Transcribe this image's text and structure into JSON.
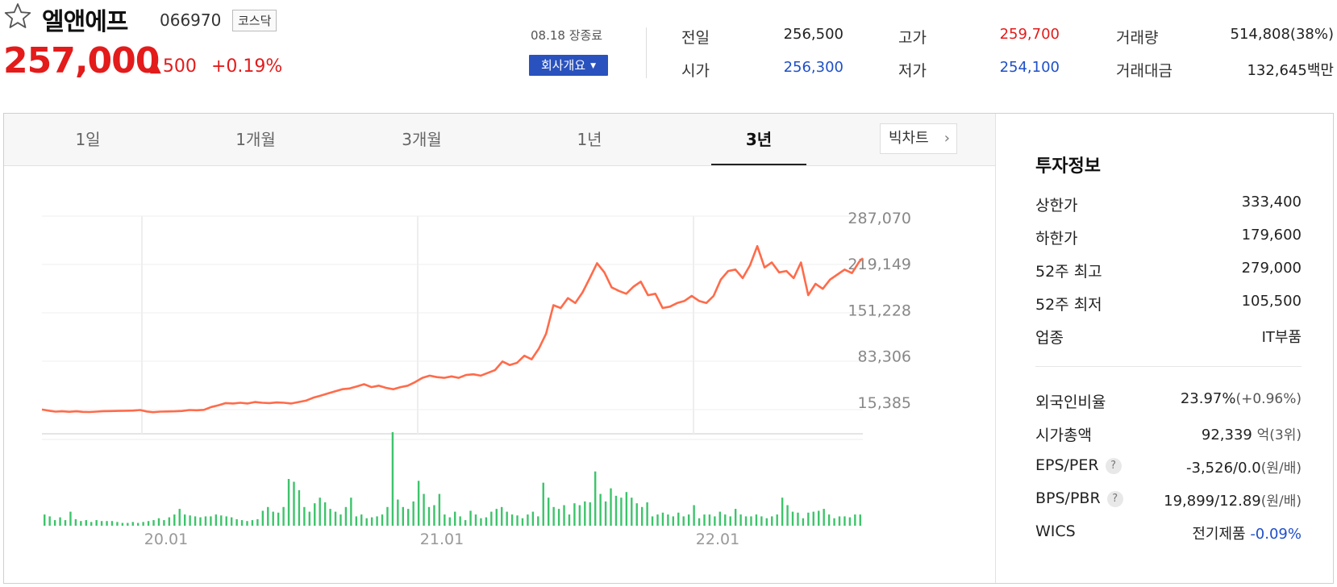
{
  "header": {
    "favorite_icon": "star-outline-icon",
    "stock_name": "엘앤에프",
    "stock_code": "066970",
    "market": "코스닥",
    "price": "257,000",
    "change_arrow": "▲",
    "change": "500",
    "change_pct": "+0.19%",
    "time_status": "08.18 장종료",
    "company_button": "회사개요",
    "colors": {
      "up": "#e31b1b",
      "down": "#1f50c8",
      "accent": "#2a52be"
    },
    "stats": [
      {
        "label": "전일",
        "value": "256,500",
        "color": "dark"
      },
      {
        "label": "고가",
        "value": "259,700",
        "color": "red"
      },
      {
        "label": "거래량",
        "value": "514,808(38%)",
        "color": "dark"
      },
      {
        "label": "시가",
        "value": "256,300",
        "color": "blue"
      },
      {
        "label": "저가",
        "value": "254,100",
        "color": "blue"
      },
      {
        "label": "거래대금",
        "value": "132,645백만",
        "color": "dark"
      }
    ]
  },
  "tabs": [
    "1일",
    "1개월",
    "3개월",
    "1년",
    "3년"
  ],
  "active_tab": "3년",
  "big_chart_button": "빅차트",
  "chart_data": {
    "type": "line",
    "title": "",
    "y_ticks": [
      "287,070",
      "219,149",
      "151,228",
      "83,306",
      "15,385"
    ],
    "x_ticks": [
      "20.01",
      "21.01",
      "22.01"
    ],
    "price_color": "#ff6b4a",
    "volume_color": "#3cc46a",
    "price_y_range": [
      15385,
      287070
    ],
    "price_points": [
      [
        0,
        15500
      ],
      [
        8,
        13800
      ],
      [
        15,
        12500
      ],
      [
        22,
        13000
      ],
      [
        30,
        12300
      ],
      [
        38,
        13000
      ],
      [
        45,
        12200
      ],
      [
        52,
        12000
      ],
      [
        60,
        12500
      ],
      [
        68,
        13200
      ],
      [
        76,
        13400
      ],
      [
        84,
        13600
      ],
      [
        92,
        13800
      ],
      [
        100,
        14000
      ],
      [
        108,
        14800
      ],
      [
        115,
        12800
      ],
      [
        122,
        11800
      ],
      [
        130,
        12500
      ],
      [
        138,
        12800
      ],
      [
        146,
        13000
      ],
      [
        154,
        13500
      ],
      [
        162,
        14800
      ],
      [
        170,
        14500
      ],
      [
        178,
        15000
      ],
      [
        186,
        19000
      ],
      [
        194,
        21500
      ],
      [
        202,
        24500
      ],
      [
        210,
        24000
      ],
      [
        218,
        25000
      ],
      [
        226,
        24000
      ],
      [
        234,
        26000
      ],
      [
        242,
        25000
      ],
      [
        250,
        24500
      ],
      [
        258,
        25500
      ],
      [
        266,
        25000
      ],
      [
        274,
        24000
      ],
      [
        282,
        26000
      ],
      [
        290,
        28000
      ],
      [
        298,
        32000
      ],
      [
        306,
        35000
      ],
      [
        314,
        38000
      ],
      [
        322,
        41000
      ],
      [
        330,
        44000
      ],
      [
        338,
        45000
      ],
      [
        346,
        48000
      ],
      [
        354,
        51000
      ],
      [
        362,
        47000
      ],
      [
        370,
        49000
      ],
      [
        378,
        46000
      ],
      [
        386,
        44000
      ],
      [
        394,
        47000
      ],
      [
        402,
        49000
      ],
      [
        410,
        54000
      ],
      [
        418,
        60000
      ],
      [
        426,
        63000
      ],
      [
        434,
        61000
      ],
      [
        442,
        60000
      ],
      [
        450,
        62000
      ],
      [
        458,
        60000
      ],
      [
        466,
        64000
      ],
      [
        474,
        65000
      ],
      [
        482,
        63000
      ],
      [
        490,
        67000
      ],
      [
        498,
        71000
      ],
      [
        506,
        83000
      ],
      [
        514,
        78000
      ],
      [
        522,
        81000
      ],
      [
        530,
        91000
      ],
      [
        538,
        86000
      ],
      [
        546,
        101000
      ],
      [
        554,
        122000
      ],
      [
        562,
        162000
      ],
      [
        570,
        158000
      ],
      [
        578,
        172000
      ],
      [
        586,
        165000
      ],
      [
        594,
        180000
      ],
      [
        602,
        200000
      ],
      [
        610,
        221000
      ],
      [
        618,
        208000
      ],
      [
        626,
        187000
      ],
      [
        634,
        182000
      ],
      [
        642,
        178000
      ],
      [
        650,
        188000
      ],
      [
        658,
        195000
      ],
      [
        666,
        176000
      ],
      [
        674,
        178000
      ],
      [
        682,
        158000
      ],
      [
        690,
        160000
      ],
      [
        698,
        165000
      ],
      [
        706,
        168000
      ],
      [
        714,
        175000
      ],
      [
        722,
        168000
      ],
      [
        730,
        165000
      ],
      [
        738,
        175000
      ],
      [
        746,
        198000
      ],
      [
        754,
        210000
      ],
      [
        762,
        212000
      ],
      [
        770,
        200000
      ],
      [
        778,
        218000
      ],
      [
        786,
        245000
      ],
      [
        794,
        215000
      ],
      [
        802,
        222000
      ],
      [
        810,
        208000
      ],
      [
        818,
        210000
      ],
      [
        826,
        200000
      ],
      [
        834,
        222000
      ],
      [
        842,
        176000
      ],
      [
        850,
        192000
      ],
      [
        858,
        185000
      ],
      [
        866,
        198000
      ],
      [
        874,
        205000
      ],
      [
        882,
        212000
      ],
      [
        890,
        207000
      ],
      [
        898,
        223000
      ],
      [
        902,
        228000
      ]
    ],
    "volume_rel": [
      0.12,
      0.1,
      0.06,
      0.09,
      0.06,
      0.15,
      0.07,
      0.05,
      0.06,
      0.04,
      0.06,
      0.05,
      0.05,
      0.05,
      0.04,
      0.03,
      0.03,
      0.04,
      0.03,
      0.04,
      0.05,
      0.06,
      0.08,
      0.06,
      0.09,
      0.12,
      0.18,
      0.12,
      0.11,
      0.1,
      0.09,
      0.1,
      0.1,
      0.12,
      0.11,
      0.1,
      0.09,
      0.07,
      0.06,
      0.05,
      0.06,
      0.07,
      0.16,
      0.2,
      0.15,
      0.14,
      0.2,
      0.5,
      0.47,
      0.38,
      0.2,
      0.15,
      0.24,
      0.3,
      0.25,
      0.18,
      0.15,
      0.12,
      0.2,
      0.3,
      0.1,
      0.12,
      0.08,
      0.09,
      0.1,
      0.12,
      0.2,
      1.0,
      0.28,
      0.2,
      0.18,
      0.26,
      0.48,
      0.34,
      0.2,
      0.22,
      0.34,
      0.12,
      0.09,
      0.15,
      0.1,
      0.06,
      0.16,
      0.12,
      0.08,
      0.09,
      0.15,
      0.18,
      0.2,
      0.15,
      0.12,
      0.11,
      0.08,
      0.12,
      0.15,
      0.1,
      0.46,
      0.3,
      0.2,
      0.18,
      0.22,
      0.12,
      0.24,
      0.22,
      0.26,
      0.25,
      0.58,
      0.34,
      0.26,
      0.4,
      0.32,
      0.3,
      0.36,
      0.3,
      0.24,
      0.2,
      0.25,
      0.1,
      0.12,
      0.14,
      0.12,
      0.1,
      0.14,
      0.1,
      0.12,
      0.22,
      0.08,
      0.12,
      0.12,
      0.1,
      0.15,
      0.12,
      0.1,
      0.18,
      0.12,
      0.1,
      0.1,
      0.12,
      0.1,
      0.08,
      0.1,
      0.12,
      0.3,
      0.22,
      0.15,
      0.14,
      0.08,
      0.14,
      0.15,
      0.16,
      0.18,
      0.12,
      0.08,
      0.1,
      0.1,
      0.09,
      0.12,
      0.12
    ]
  },
  "investment": {
    "title": "투자정보",
    "rows": [
      {
        "label": "상한가",
        "value": "333,400",
        "color": "red"
      },
      {
        "label": "하한가",
        "value": "179,600",
        "color": "blue"
      },
      {
        "label": "52주 최고",
        "value": "279,000",
        "color": "dark"
      },
      {
        "label": "52주 최저",
        "value": "105,500",
        "color": "dark"
      },
      {
        "label": "업종",
        "value": "IT부품",
        "color": "dark"
      }
    ],
    "foreign_label": "외국인비율",
    "foreign_value": "23.97%",
    "foreign_change": "(+0.96%)",
    "mcap_label": "시가총액",
    "mcap_value": "92,339",
    "mcap_unit": "억(3위)",
    "eps_label": "EPS/PER",
    "eps_value": "-3,526/0.0",
    "eps_unit": "(원/배)",
    "bps_label": "BPS/PBR",
    "bps_value": "19,899/12.89",
    "bps_unit": "(원/배)",
    "help_icon_text": "?",
    "wics_label": "WICS",
    "wics_value": "전기제품",
    "wics_change": "-0.09%"
  }
}
